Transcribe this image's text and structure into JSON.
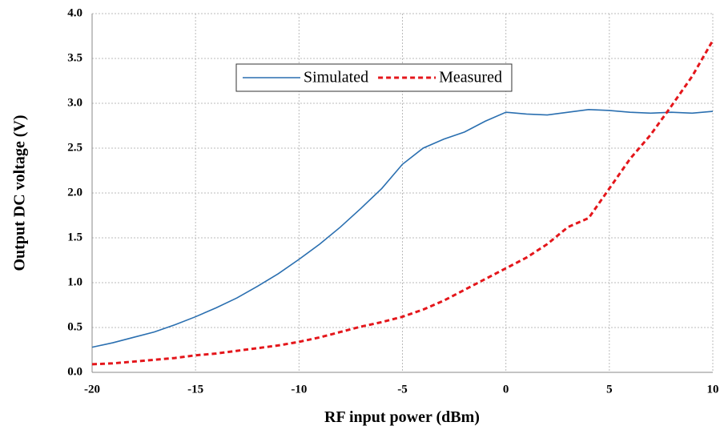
{
  "chart_data": {
    "type": "line",
    "xlabel": "RF input power (dBm)",
    "ylabel": "Output DC voltage (V)",
    "x": [
      -20,
      -19,
      -18,
      -17,
      -16,
      -15,
      -14,
      -13,
      -12,
      -11,
      -10,
      -9,
      -8,
      -7,
      -6,
      -5,
      -4,
      -3,
      -2,
      -1,
      0,
      1,
      2,
      3,
      4,
      5,
      6,
      7,
      8,
      9,
      10
    ],
    "series": [
      {
        "name": "Simulated",
        "color": "#2a6fb0",
        "style": "solid",
        "values": [
          0.28,
          0.33,
          0.39,
          0.45,
          0.53,
          0.62,
          0.72,
          0.83,
          0.96,
          1.1,
          1.26,
          1.43,
          1.62,
          1.83,
          2.05,
          2.32,
          2.5,
          2.6,
          2.68,
          2.8,
          2.9,
          2.88,
          2.87,
          2.9,
          2.93,
          2.92,
          2.9,
          2.89,
          2.9,
          2.89,
          2.91
        ]
      },
      {
        "name": "Measured",
        "color": "#e4161b",
        "style": "dashed",
        "values": [
          0.09,
          0.1,
          0.12,
          0.14,
          0.16,
          0.19,
          0.21,
          0.24,
          0.27,
          0.3,
          0.34,
          0.39,
          0.45,
          0.51,
          0.56,
          0.62,
          0.7,
          0.8,
          0.92,
          1.04,
          1.16,
          1.28,
          1.43,
          1.62,
          1.72,
          2.05,
          2.38,
          2.65,
          2.97,
          3.3,
          3.7
        ]
      }
    ],
    "xlim": [
      -20,
      10
    ],
    "xticks": [
      -20,
      -15,
      -10,
      -5,
      0,
      5,
      10
    ],
    "ylim": [
      0,
      4
    ],
    "yticks": [
      {
        "value": 0,
        "label": "0.0"
      },
      0.5,
      {
        "value": 1,
        "label": "1.0"
      },
      1.5,
      {
        "value": 2,
        "label": "2.0"
      },
      2.5,
      {
        "value": 3,
        "label": "3.0"
      },
      3.5,
      {
        "value": 4,
        "label": "4.0"
      }
    ],
    "grid": true,
    "legend": "top"
  }
}
